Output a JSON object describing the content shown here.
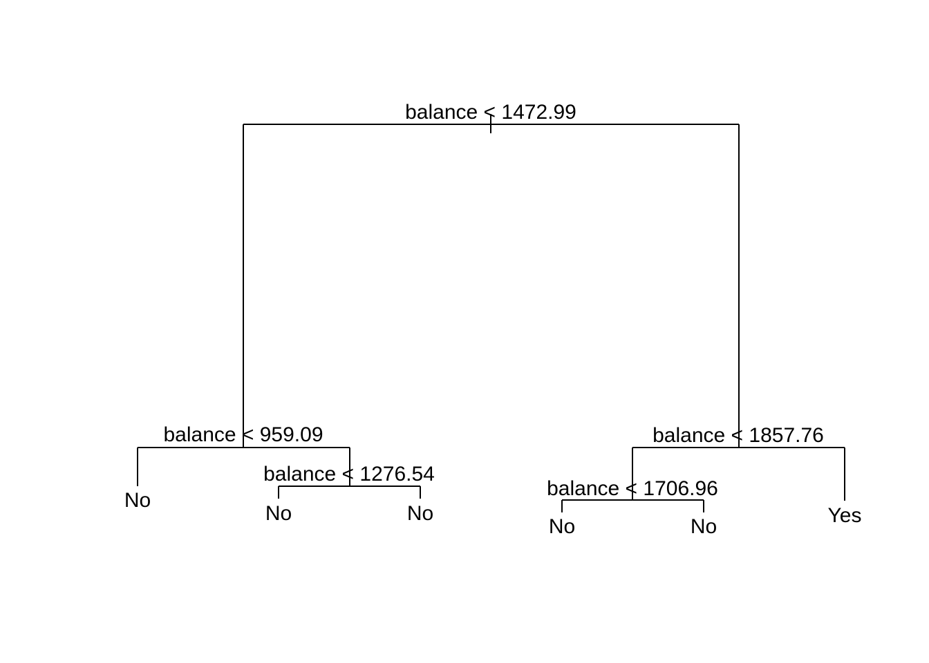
{
  "tree": {
    "nodes": [
      {
        "id": "n1",
        "type": "split",
        "label": "balance < 1472.99",
        "left": "n2",
        "right": "n5"
      },
      {
        "id": "n2",
        "type": "split",
        "label": "balance < 959.09",
        "left": "l1",
        "right": "n3"
      },
      {
        "id": "n3",
        "type": "split",
        "label": "balance < 1276.54",
        "left": "l2",
        "right": "l3"
      },
      {
        "id": "n5",
        "type": "split",
        "label": "balance < 1857.76",
        "left": "n6",
        "right": "l6"
      },
      {
        "id": "n6",
        "type": "split",
        "label": "balance < 1706.96",
        "left": "l4",
        "right": "l5"
      },
      {
        "id": "l1",
        "type": "leaf",
        "label": "No"
      },
      {
        "id": "l2",
        "type": "leaf",
        "label": "No"
      },
      {
        "id": "l3",
        "type": "leaf",
        "label": "No"
      },
      {
        "id": "l4",
        "type": "leaf",
        "label": "No"
      },
      {
        "id": "l5",
        "type": "leaf",
        "label": "No"
      },
      {
        "id": "l6",
        "type": "leaf",
        "label": "Yes"
      }
    ]
  },
  "colors": {
    "line": "#000000",
    "text": "#000000",
    "background": "#ffffff"
  }
}
